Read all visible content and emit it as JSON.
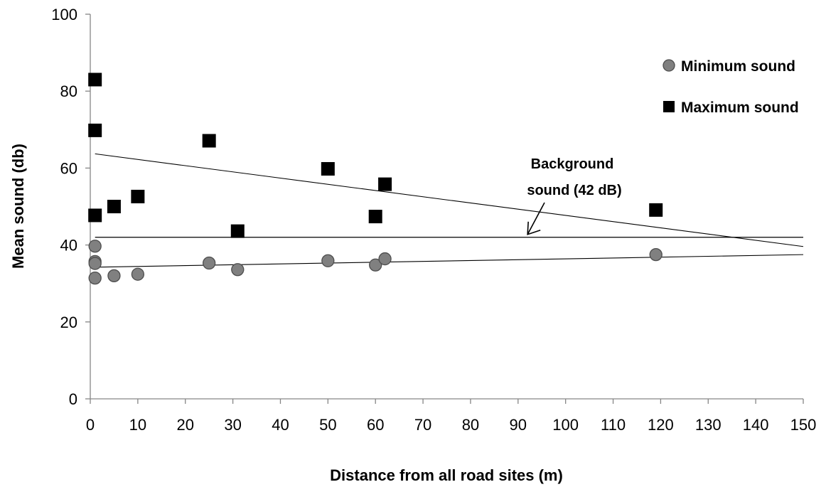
{
  "chart_data": {
    "type": "scatter",
    "xlabel": "Distance from all road sites (m)",
    "ylabel": "Mean sound (db)",
    "xlim": [
      0,
      150
    ],
    "ylim": [
      0,
      100
    ],
    "x_ticks": [
      0,
      10,
      20,
      30,
      40,
      50,
      60,
      70,
      80,
      90,
      100,
      110,
      120,
      130,
      140,
      150
    ],
    "y_ticks": [
      0,
      20,
      40,
      60,
      80,
      100
    ],
    "legend_position": "top-right",
    "grid": false,
    "series": [
      {
        "name": "Minimum sound",
        "marker": "circle",
        "color": "#808080",
        "points": [
          {
            "x": 1,
            "y": 39.7
          },
          {
            "x": 1,
            "y": 35.7
          },
          {
            "x": 1,
            "y": 35.2
          },
          {
            "x": 1,
            "y": 31.4
          },
          {
            "x": 5,
            "y": 32.0
          },
          {
            "x": 10,
            "y": 32.4
          },
          {
            "x": 25,
            "y": 35.3
          },
          {
            "x": 31,
            "y": 33.6
          },
          {
            "x": 50,
            "y": 35.9
          },
          {
            "x": 60,
            "y": 34.8
          },
          {
            "x": 62,
            "y": 36.4
          },
          {
            "x": 119,
            "y": 37.5
          }
        ],
        "trendline": {
          "x": [
            0,
            150
          ],
          "y": [
            34.2,
            37.5
          ]
        }
      },
      {
        "name": "Maximum sound",
        "marker": "square",
        "color": "#000000",
        "points": [
          {
            "x": 1,
            "y": 83.0
          },
          {
            "x": 1,
            "y": 69.8
          },
          {
            "x": 1,
            "y": 47.7
          },
          {
            "x": 5,
            "y": 50.0
          },
          {
            "x": 10,
            "y": 52.6
          },
          {
            "x": 25,
            "y": 67.1
          },
          {
            "x": 31,
            "y": 43.6
          },
          {
            "x": 50,
            "y": 59.8
          },
          {
            "x": 60,
            "y": 47.4
          },
          {
            "x": 62,
            "y": 55.8
          },
          {
            "x": 119,
            "y": 49.1
          }
        ],
        "trendline": {
          "x": [
            1,
            150
          ],
          "y": [
            63.7,
            39.6
          ]
        }
      }
    ],
    "reference_line": {
      "y": 42,
      "x": [
        1,
        150
      ]
    },
    "annotations": [
      {
        "lines": [
          "Background",
          "sound (42 dB)"
        ],
        "target": {
          "x": 92,
          "y": 42
        }
      }
    ]
  }
}
